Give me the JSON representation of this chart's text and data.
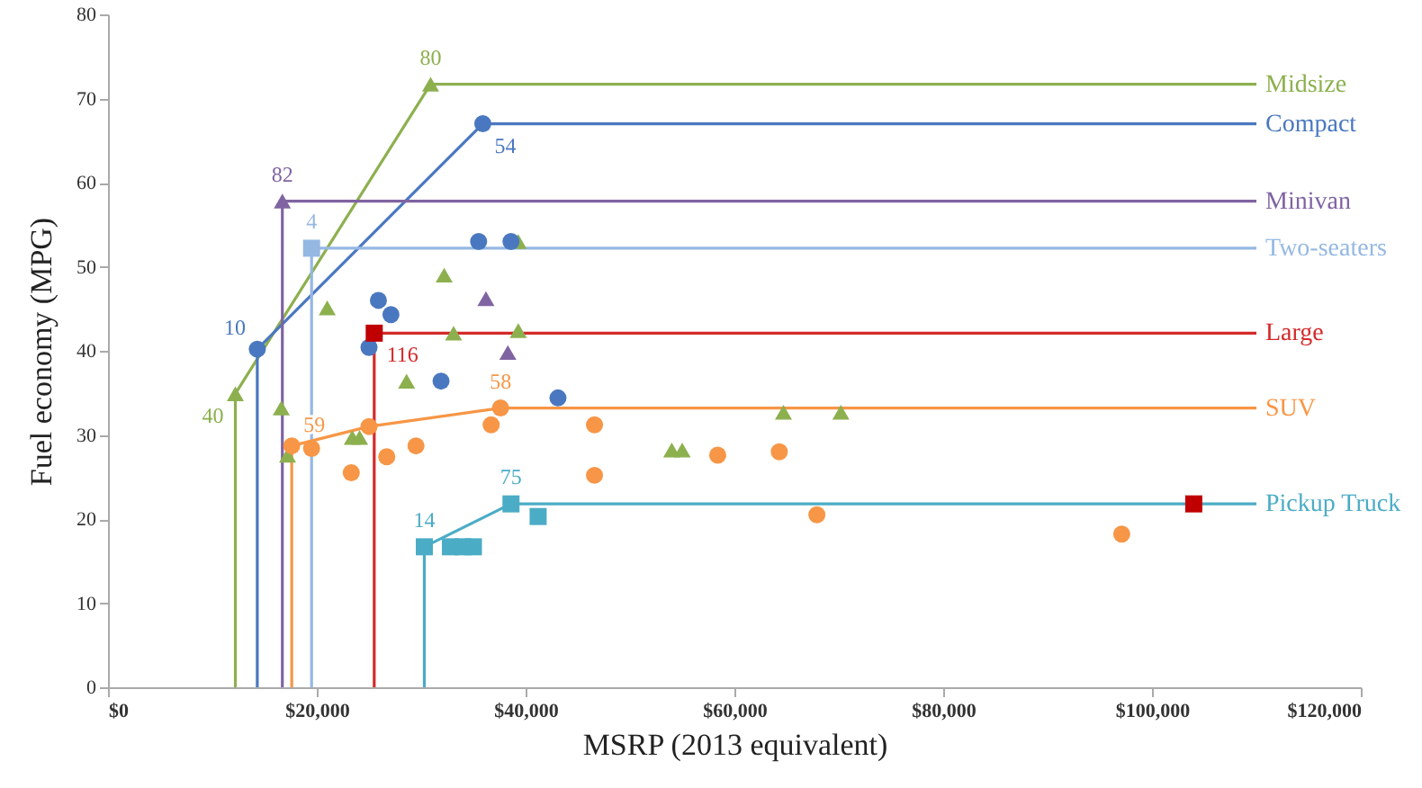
{
  "chart_data": {
    "type": "scatter",
    "xlabel": "MSRP (2013 equivalent)",
    "ylabel": "Fuel economy (MPG)",
    "xlim": [
      0,
      120000
    ],
    "xticks": [
      {
        "value": 0,
        "label": "$0"
      },
      {
        "value": 20000,
        "label": "$20,000"
      },
      {
        "value": 40000,
        "label": "$40,000"
      },
      {
        "value": 60000,
        "label": "$60,000"
      },
      {
        "value": 80000,
        "label": "$80,000"
      },
      {
        "value": 100000,
        "label": "$100,000"
      },
      {
        "value": 120000,
        "label": "$120,000"
      }
    ],
    "ylim": [
      0,
      80
    ],
    "yticks": [
      0,
      10,
      20,
      30,
      40,
      50,
      60,
      70,
      80
    ],
    "grid": false,
    "series": [
      {
        "type": "line",
        "name": "Midsize",
        "color": "#8db04f",
        "marker": "none",
        "x": [
          12200,
          12200,
          30900,
          110000
        ],
        "values": [
          0,
          34.9,
          71.7,
          71.7
        ]
      },
      {
        "type": "line",
        "name": "Compact",
        "color": "#4a78c0",
        "marker": "none",
        "x": [
          14300,
          14300,
          35900,
          110000
        ],
        "values": [
          0,
          40.2,
          67,
          67
        ]
      },
      {
        "type": "line",
        "name": "Minivan",
        "color": "#8064a2",
        "marker": "none",
        "x": [
          16700,
          16700,
          110000
        ],
        "values": [
          0,
          57.8,
          57.8
        ]
      },
      {
        "type": "line",
        "name": "Two-seaters",
        "color": "#95b8e3",
        "marker": "none",
        "x": [
          19500,
          19500,
          110000
        ],
        "values": [
          0,
          52.2,
          52.2
        ]
      },
      {
        "type": "line",
        "name": "Large",
        "color": "#d42a2a",
        "marker": "none",
        "x": [
          25500,
          25500,
          110000
        ],
        "values": [
          0,
          42.1,
          42.1
        ]
      },
      {
        "type": "line",
        "name": "SUV",
        "color": "#f79646",
        "marker": "none",
        "x": [
          17600,
          17600,
          25000,
          37600,
          110000
        ],
        "values": [
          0,
          28.7,
          31,
          33.2,
          33.2
        ]
      },
      {
        "type": "line",
        "name": "Pickup Truck",
        "color": "#4bacc6",
        "marker": "none",
        "x": [
          30300,
          30300,
          38600,
          110000
        ],
        "values": [
          0,
          16.7,
          21.8,
          21.8
        ]
      },
      {
        "color": "#8db04f",
        "marker": "triangle",
        "x": [
          12200,
          30900,
          21000,
          32200,
          33100,
          28600,
          39300,
          39300,
          16600,
          17200,
          23400,
          24100,
          54000,
          55000,
          64700,
          70200
        ],
        "values": [
          34.9,
          71.7,
          45.1,
          49,
          42.1,
          36.4,
          42.4,
          53,
          33.2,
          27.6,
          29.7,
          29.7,
          28.2,
          28.2,
          32.7,
          32.7
        ]
      },
      {
        "color": "#4a78c0",
        "marker": "circle",
        "x": [
          14300,
          35900,
          25900,
          27100,
          25000,
          31900,
          35500,
          38600,
          43100
        ],
        "values": [
          40.2,
          67,
          46,
          44.3,
          40.4,
          36.4,
          53,
          53,
          34.4
        ]
      },
      {
        "color": "#8064a2",
        "marker": "triangle",
        "x": [
          16700,
          36200,
          38300
        ],
        "values": [
          57.8,
          46.2,
          39.8
        ]
      },
      {
        "color": "#95b8e3",
        "marker": "square",
        "x": [
          19500
        ],
        "values": [
          52.2
        ]
      },
      {
        "color": "#c00000",
        "marker": "square",
        "x": [
          25500,
          104000
        ],
        "values": [
          42.1,
          21.8
        ]
      },
      {
        "color": "#f79646",
        "marker": "circle",
        "x": [
          17600,
          19500,
          23300,
          25000,
          26700,
          29500,
          36700,
          37600,
          46600,
          46600,
          58400,
          64300,
          67900,
          97100
        ],
        "values": [
          28.7,
          28.4,
          25.5,
          31,
          27.4,
          28.7,
          31.2,
          33.2,
          31.2,
          25.2,
          27.6,
          28,
          20.5,
          18.2
        ]
      },
      {
        "color": "#4bacc6",
        "marker": "square",
        "x": [
          30300,
          32800,
          34000,
          35000,
          38600,
          41200
        ],
        "values": [
          16.7,
          16.7,
          16.7,
          16.7,
          21.8,
          20.3
        ]
      }
    ],
    "annotations": [
      {
        "text": "40",
        "x": 12200,
        "y": 34.9
      },
      {
        "text": "80",
        "x": 30900,
        "y": 71.7
      },
      {
        "text": "10",
        "x": 14300,
        "y": 40.2
      },
      {
        "text": "54",
        "x": 35900,
        "y": 67
      },
      {
        "text": "82",
        "x": 16700,
        "y": 57.8
      },
      {
        "text": "4",
        "x": 19500,
        "y": 52.2
      },
      {
        "text": "116",
        "x": 25500,
        "y": 42.1
      },
      {
        "text": "59",
        "x": 17600,
        "y": 28.7
      },
      {
        "text": "58",
        "x": 37600,
        "y": 33.2
      },
      {
        "text": "14",
        "x": 30300,
        "y": 16.7
      },
      {
        "text": "75",
        "x": 38600,
        "y": 21.8
      }
    ]
  }
}
